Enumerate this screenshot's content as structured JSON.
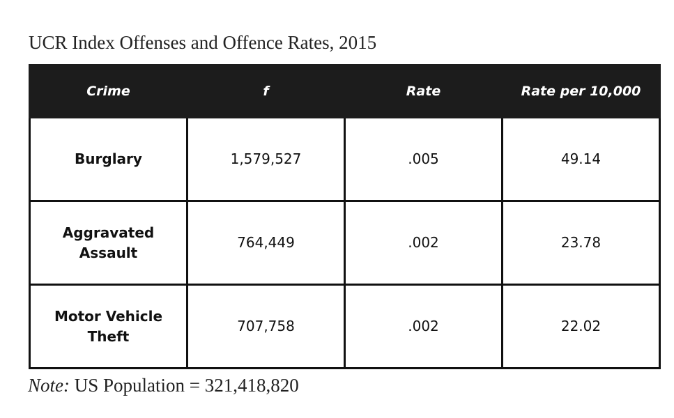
{
  "title": "UCR Index Offenses and Offence Rates, 2015",
  "table": {
    "headers": [
      "Crime",
      "f",
      "Rate",
      "Rate per 10,000"
    ],
    "rows": [
      [
        "Burglary",
        "1,579,527",
        ".005",
        "49.14"
      ],
      [
        "Aggravated Assault",
        "764,449",
        ".002",
        "23.78"
      ],
      [
        "Motor Vehicle Theft",
        "707,758",
        ".002",
        "22.02"
      ]
    ]
  },
  "note": {
    "label": "Note:",
    "text": " US Population = 321,418,820"
  }
}
